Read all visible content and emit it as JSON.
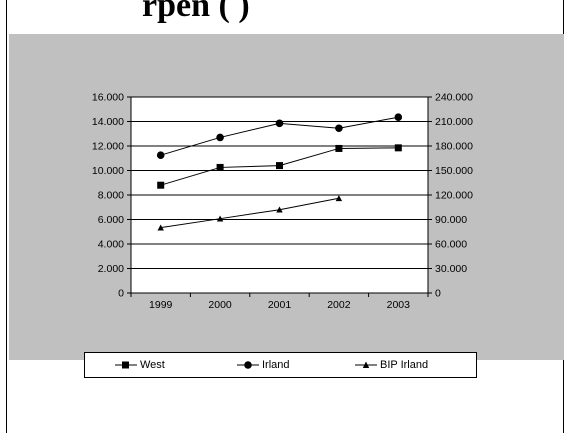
{
  "title_fragment": "rpen ( )",
  "chart_data": {
    "type": "line",
    "categories": [
      "1999",
      "2000",
      "2001",
      "2002",
      "2003"
    ],
    "y_left_ticks": [
      "0",
      "2.000",
      "4.000",
      "6.000",
      "8.000",
      "10.000",
      "12.000",
      "14.000",
      "16.000"
    ],
    "y_right_ticks": [
      "0",
      "30.000",
      "60.000",
      "90.000",
      "120.000",
      "150.000",
      "180.000",
      "210.000",
      "240.000"
    ],
    "ylim_left": [
      0,
      16000
    ],
    "ylim_right": [
      0,
      240000
    ],
    "grid": true,
    "legend_position": "bottom",
    "series": [
      {
        "name": "West",
        "axis": "left",
        "marker": "square",
        "values": [
          8800,
          10250,
          10400,
          11800,
          11850
        ]
      },
      {
        "name": "Irland",
        "axis": "left",
        "marker": "circle",
        "values": [
          11250,
          12700,
          13850,
          13450,
          14350
        ]
      },
      {
        "name": "BIP Irland",
        "axis": "right",
        "marker": "triangle",
        "values": [
          80000,
          91000,
          102000,
          116000,
          null
        ]
      }
    ]
  },
  "colors": {
    "panel": "#c0c0c0",
    "plot": "#ffffff",
    "line": "#000000"
  }
}
